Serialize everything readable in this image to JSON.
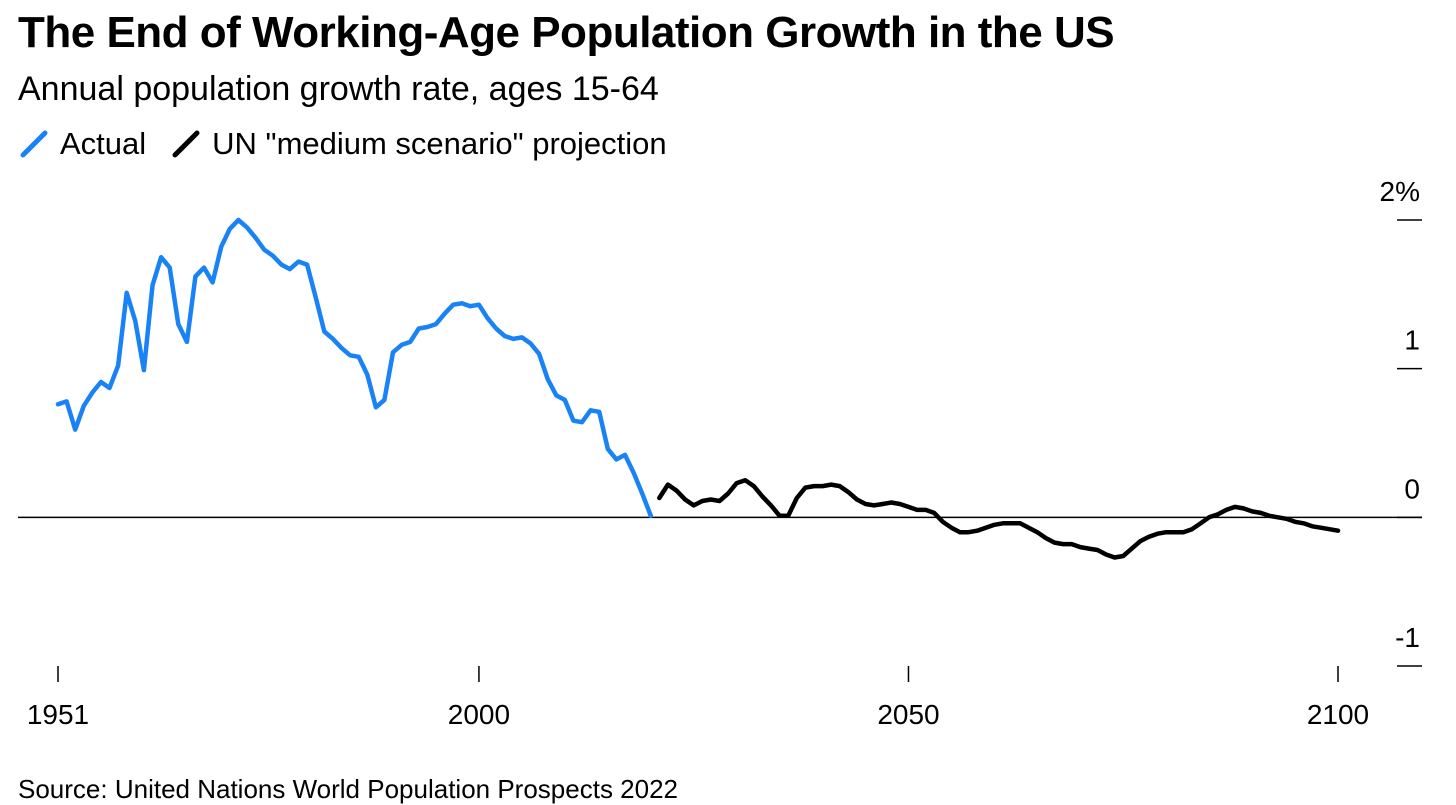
{
  "title": "The End of Working-Age Population Growth in the US",
  "subtitle": "Annual population growth rate, ages 15-64",
  "source": "Source: United Nations World Population Prospects 2022",
  "colors": {
    "actual": "#1a82f7",
    "projection": "#000000"
  },
  "chart_data": {
    "type": "line",
    "legend_position": "top-left",
    "grid": false,
    "xlim": [
      1951,
      2100
    ],
    "ylim": [
      -1,
      2
    ],
    "x_ticks": [
      {
        "value": 1951,
        "label": "1951"
      },
      {
        "value": 2000,
        "label": "2000"
      },
      {
        "value": 2050,
        "label": "2050"
      },
      {
        "value": 2100,
        "label": "2100"
      }
    ],
    "y_ticks": [
      {
        "value": 2,
        "label": "2%"
      },
      {
        "value": 1,
        "label": "1"
      },
      {
        "value": 0,
        "label": "0"
      },
      {
        "value": -1,
        "label": "-1"
      }
    ],
    "series": [
      {
        "name": "Actual",
        "color": "#1a82f7",
        "points": [
          [
            1951,
            0.76
          ],
          [
            1952,
            0.78
          ],
          [
            1953,
            0.59
          ],
          [
            1954,
            0.75
          ],
          [
            1955,
            0.84
          ],
          [
            1956,
            0.91
          ],
          [
            1957,
            0.87
          ],
          [
            1958,
            1.02
          ],
          [
            1959,
            1.51
          ],
          [
            1960,
            1.32
          ],
          [
            1961,
            0.99
          ],
          [
            1962,
            1.56
          ],
          [
            1963,
            1.75
          ],
          [
            1964,
            1.68
          ],
          [
            1965,
            1.3
          ],
          [
            1966,
            1.18
          ],
          [
            1967,
            1.62
          ],
          [
            1968,
            1.68
          ],
          [
            1969,
            1.58
          ],
          [
            1970,
            1.82
          ],
          [
            1971,
            1.94
          ],
          [
            1972,
            2.0
          ],
          [
            1973,
            1.95
          ],
          [
            1974,
            1.88
          ],
          [
            1975,
            1.8
          ],
          [
            1976,
            1.76
          ],
          [
            1977,
            1.7
          ],
          [
            1978,
            1.67
          ],
          [
            1979,
            1.72
          ],
          [
            1980,
            1.7
          ],
          [
            1981,
            1.48
          ],
          [
            1982,
            1.25
          ],
          [
            1983,
            1.2
          ],
          [
            1984,
            1.14
          ],
          [
            1985,
            1.09
          ],
          [
            1986,
            1.08
          ],
          [
            1987,
            0.96
          ],
          [
            1988,
            0.74
          ],
          [
            1989,
            0.79
          ],
          [
            1990,
            1.11
          ],
          [
            1991,
            1.16
          ],
          [
            1992,
            1.18
          ],
          [
            1993,
            1.27
          ],
          [
            1994,
            1.28
          ],
          [
            1995,
            1.3
          ],
          [
            1996,
            1.37
          ],
          [
            1997,
            1.43
          ],
          [
            1998,
            1.44
          ],
          [
            1999,
            1.42
          ],
          [
            2000,
            1.43
          ],
          [
            2001,
            1.34
          ],
          [
            2002,
            1.27
          ],
          [
            2003,
            1.22
          ],
          [
            2004,
            1.2
          ],
          [
            2005,
            1.21
          ],
          [
            2006,
            1.17
          ],
          [
            2007,
            1.1
          ],
          [
            2008,
            0.93
          ],
          [
            2009,
            0.82
          ],
          [
            2010,
            0.79
          ],
          [
            2011,
            0.65
          ],
          [
            2012,
            0.64
          ],
          [
            2013,
            0.72
          ],
          [
            2014,
            0.71
          ],
          [
            2015,
            0.46
          ],
          [
            2016,
            0.39
          ],
          [
            2017,
            0.42
          ],
          [
            2018,
            0.3
          ],
          [
            2019,
            0.16
          ],
          [
            2020,
            0.01
          ]
        ]
      },
      {
        "name": "UN \"medium scenario\" projection",
        "color": "#000000",
        "points": [
          [
            2021,
            0.13
          ],
          [
            2022,
            0.22
          ],
          [
            2023,
            0.18
          ],
          [
            2024,
            0.12
          ],
          [
            2025,
            0.08
          ],
          [
            2026,
            0.11
          ],
          [
            2027,
            0.12
          ],
          [
            2028,
            0.11
          ],
          [
            2029,
            0.16
          ],
          [
            2030,
            0.23
          ],
          [
            2031,
            0.25
          ],
          [
            2032,
            0.21
          ],
          [
            2033,
            0.14
          ],
          [
            2034,
            0.08
          ],
          [
            2035,
            0.01
          ],
          [
            2036,
            0.01
          ],
          [
            2037,
            0.13
          ],
          [
            2038,
            0.2
          ],
          [
            2039,
            0.21
          ],
          [
            2040,
            0.21
          ],
          [
            2041,
            0.22
          ],
          [
            2042,
            0.21
          ],
          [
            2043,
            0.17
          ],
          [
            2044,
            0.12
          ],
          [
            2045,
            0.09
          ],
          [
            2046,
            0.08
          ],
          [
            2047,
            0.09
          ],
          [
            2048,
            0.1
          ],
          [
            2049,
            0.09
          ],
          [
            2050,
            0.07
          ],
          [
            2051,
            0.05
          ],
          [
            2052,
            0.05
          ],
          [
            2053,
            0.03
          ],
          [
            2054,
            -0.03
          ],
          [
            2055,
            -0.07
          ],
          [
            2056,
            -0.1
          ],
          [
            2057,
            -0.1
          ],
          [
            2058,
            -0.09
          ],
          [
            2059,
            -0.07
          ],
          [
            2060,
            -0.05
          ],
          [
            2061,
            -0.04
          ],
          [
            2062,
            -0.04
          ],
          [
            2063,
            -0.04
          ],
          [
            2064,
            -0.07
          ],
          [
            2065,
            -0.1
          ],
          [
            2066,
            -0.14
          ],
          [
            2067,
            -0.17
          ],
          [
            2068,
            -0.18
          ],
          [
            2069,
            -0.18
          ],
          [
            2070,
            -0.2
          ],
          [
            2071,
            -0.21
          ],
          [
            2072,
            -0.22
          ],
          [
            2073,
            -0.25
          ],
          [
            2074,
            -0.27
          ],
          [
            2075,
            -0.26
          ],
          [
            2076,
            -0.21
          ],
          [
            2077,
            -0.16
          ],
          [
            2078,
            -0.13
          ],
          [
            2079,
            -0.11
          ],
          [
            2080,
            -0.1
          ],
          [
            2081,
            -0.1
          ],
          [
            2082,
            -0.1
          ],
          [
            2083,
            -0.08
          ],
          [
            2084,
            -0.04
          ],
          [
            2085,
            0.0
          ],
          [
            2086,
            0.02
          ],
          [
            2087,
            0.05
          ],
          [
            2088,
            0.07
          ],
          [
            2089,
            0.06
          ],
          [
            2090,
            0.04
          ],
          [
            2091,
            0.03
          ],
          [
            2092,
            0.01
          ],
          [
            2093,
            0.0
          ],
          [
            2094,
            -0.01
          ],
          [
            2095,
            -0.03
          ],
          [
            2096,
            -0.04
          ],
          [
            2097,
            -0.06
          ],
          [
            2098,
            -0.07
          ],
          [
            2099,
            -0.08
          ],
          [
            2100,
            -0.09
          ]
        ]
      }
    ]
  }
}
